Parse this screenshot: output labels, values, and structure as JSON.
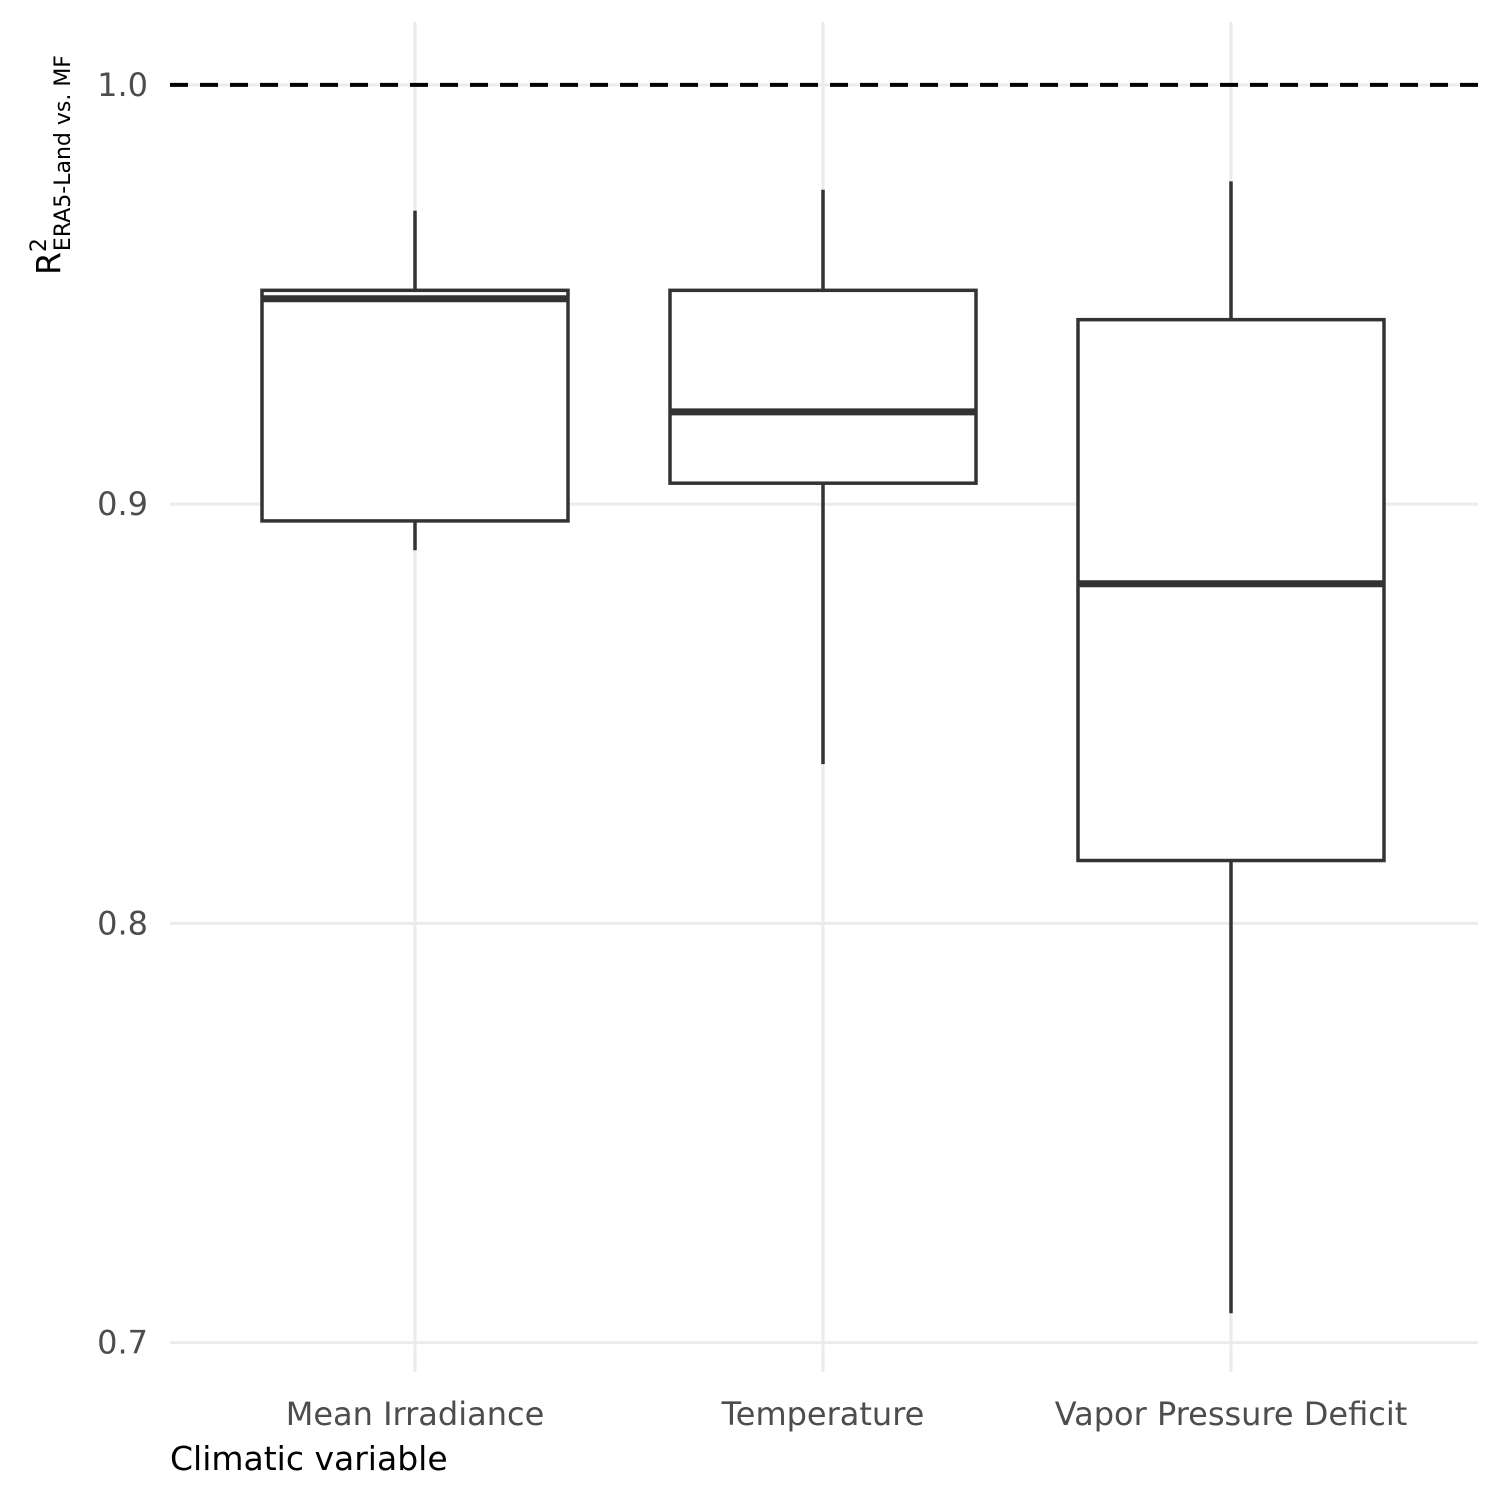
{
  "chart_data": {
    "type": "boxplot",
    "title": "",
    "xlabel": "Climatic variable",
    "ylabel": {
      "main": "R",
      "superscript": "2",
      "subscript": "ERA5-Land vs. MF"
    },
    "ylim": [
      0.693,
      1.015
    ],
    "yticks": [
      0.7,
      0.8,
      0.9,
      1.0
    ],
    "ytick_labels": [
      "0.7",
      "0.8",
      "0.9",
      "1.0"
    ],
    "reference_line": {
      "y": 1.0,
      "style": "dashed"
    },
    "grid": true,
    "categories": [
      "Mean Irradiance",
      "Temperature",
      "Vapor Pressure Deficit"
    ],
    "boxes": [
      {
        "category": "Mean Irradiance",
        "whisker_low": 0.889,
        "q1": 0.896,
        "median": 0.949,
        "q3": 0.951,
        "whisker_high": 0.97
      },
      {
        "category": "Temperature",
        "whisker_low": 0.838,
        "q1": 0.905,
        "median": 0.922,
        "q3": 0.951,
        "whisker_high": 0.975
      },
      {
        "category": "Vapor Pressure Deficit",
        "whisker_low": 0.707,
        "q1": 0.815,
        "median": 0.881,
        "q3": 0.944,
        "whisker_high": 0.977
      }
    ]
  }
}
